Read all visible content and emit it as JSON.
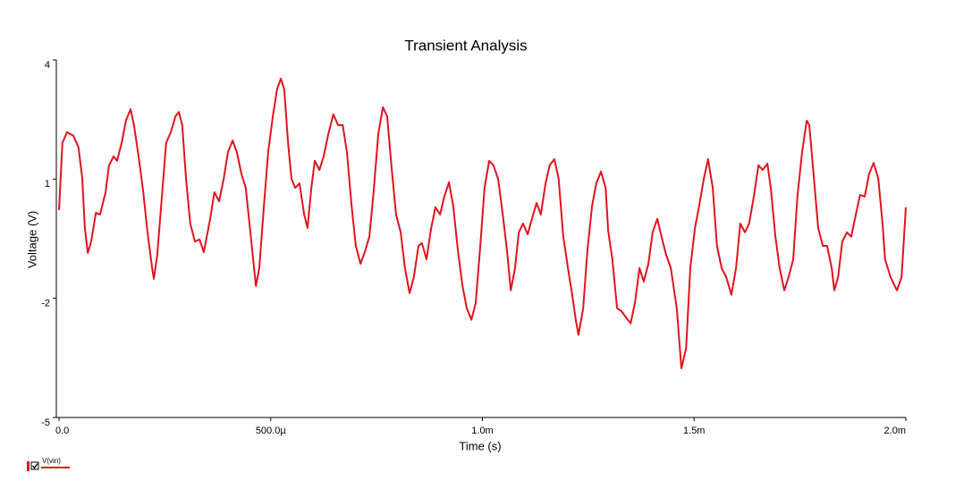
{
  "chart_data": {
    "type": "line",
    "title": "Transient Analysis",
    "x_label": "Time (s)",
    "y_label": "Voltage (V)",
    "x": [
      0,
      8e-06,
      1.9e-05,
      3.4e-05,
      4.6e-05,
      5.5e-05,
      6.1e-05,
      6.8e-05,
      7.6e-05,
      8.7e-05,
      9.7e-05,
      0.00011,
      0.000118,
      0.000129,
      0.000137,
      0.000148,
      0.000158,
      0.000169,
      0.000177,
      0.000188,
      0.000199,
      0.000209,
      0.00022,
      0.000224,
      0.000232,
      0.000243,
      0.000253,
      0.000264,
      0.000275,
      0.000283,
      0.000291,
      0.0003,
      0.00031,
      0.000321,
      0.000332,
      0.000342,
      0.000357,
      0.000367,
      0.000378,
      0.000389,
      0.000399,
      0.00041,
      0.00042,
      0.000431,
      0.000441,
      0.000452,
      0.000465,
      0.000473,
      0.000484,
      0.000494,
      0.000505,
      0.000515,
      0.000524,
      0.000532,
      0.000541,
      0.000549,
      0.000558,
      0.000568,
      0.000579,
      0.000587,
      0.000596,
      0.000604,
      0.000615,
      0.000625,
      0.000636,
      0.000648,
      0.000659,
      0.00067,
      0.00068,
      0.000691,
      0.000701,
      0.000712,
      0.000722,
      0.000733,
      0.000743,
      0.000754,
      0.000765,
      0.000775,
      0.000786,
      0.000796,
      0.000807,
      0.000817,
      0.000828,
      0.000838,
      0.000849,
      0.000857,
      0.000868,
      0.000879,
      0.000889,
      0.0009,
      0.00091,
      0.000921,
      0.000931,
      0.000942,
      0.000953,
      0.000963,
      0.000974,
      0.000984,
      0.000995,
      0.001005,
      0.001016,
      0.001026,
      0.001037,
      0.001048,
      0.001058,
      0.001067,
      0.001077,
      0.001086,
      0.001096,
      0.001107,
      0.001117,
      0.001128,
      0.001138,
      0.001149,
      0.001159,
      0.00117,
      0.00118,
      0.001191,
      0.001202,
      0.001212,
      0.001221,
      0.001227,
      0.001238,
      0.001248,
      0.001259,
      0.001269,
      0.00128,
      0.001291,
      0.001297,
      0.001307,
      0.001318,
      0.001328,
      0.001339,
      0.00135,
      0.00136,
      0.001371,
      0.001381,
      0.001392,
      0.001402,
      0.001413,
      0.001423,
      0.001434,
      0.001445,
      0.001459,
      0.00147,
      0.001481,
      0.001491,
      0.001502,
      0.001512,
      0.001523,
      0.001533,
      0.001544,
      0.001554,
      0.001565,
      0.001576,
      0.001588,
      0.001599,
      0.001609,
      0.00162,
      0.00163,
      0.001641,
      0.001652,
      0.001662,
      0.001673,
      0.001681,
      0.001692,
      0.001702,
      0.001713,
      0.001723,
      0.001734,
      0.001744,
      0.001755,
      0.001766,
      0.001772,
      0.001783,
      0.001793,
      0.001804,
      0.001814,
      0.001825,
      0.001831,
      0.00184,
      0.00185,
      0.001861,
      0.001871,
      0.001882,
      0.001892,
      0.001903,
      0.001913,
      0.001924,
      0.001935,
      0.001945,
      0.001951,
      0.001964,
      0.001979,
      0.00199,
      0.002
    ],
    "series": [
      {
        "name": "V(vin)",
        "color": "#e0141e",
        "values": [
          0.22,
          1.91,
          2.18,
          2.09,
          1.8,
          1.01,
          -0.23,
          -0.86,
          -0.57,
          0.15,
          0.11,
          0.67,
          1.34,
          1.57,
          1.46,
          1.91,
          2.47,
          2.76,
          2.36,
          1.57,
          0.67,
          -0.34,
          -1.24,
          -1.51,
          -0.91,
          0.56,
          1.91,
          2.18,
          2.58,
          2.69,
          2.36,
          1.01,
          -0.12,
          -0.57,
          -0.52,
          -0.84,
          0,
          0.67,
          0.44,
          1.01,
          1.68,
          1.97,
          1.68,
          1.12,
          0.78,
          -0.34,
          -1.69,
          -1.24,
          0.33,
          1.68,
          2.58,
          3.26,
          3.53,
          3.26,
          1.91,
          1.01,
          0.78,
          0.89,
          0.11,
          -0.23,
          0.78,
          1.46,
          1.23,
          1.57,
          2.13,
          2.63,
          2.36,
          2.36,
          1.68,
          0.33,
          -0.68,
          -1.13,
          -0.84,
          -0.45,
          0.67,
          2.13,
          2.81,
          2.58,
          1.23,
          0.11,
          -0.34,
          -1.24,
          -1.87,
          -1.47,
          -0.68,
          -0.61,
          -1.02,
          -0.23,
          0.29,
          0.11,
          0.56,
          0.92,
          0.33,
          -0.79,
          -1.69,
          -2.25,
          -2.54,
          -2.13,
          -0.68,
          0.78,
          1.46,
          1.35,
          1.01,
          0.11,
          -0.79,
          -1.8,
          -1.24,
          -0.34,
          -0.12,
          -0.39,
          0,
          0.4,
          0.11,
          0.89,
          1.35,
          1.5,
          1.01,
          -0.45,
          -1.24,
          -1.91,
          -2.58,
          -2.92,
          -2.25,
          -0.79,
          0.33,
          0.89,
          1.19,
          0.78,
          -0.3,
          -1.02,
          -2.25,
          -2.32,
          -2.48,
          -2.63,
          -2.13,
          -1.24,
          -1.58,
          -1.13,
          -0.34,
          0,
          -0.45,
          -0.91,
          -1.24,
          -2.25,
          -3.76,
          -3.27,
          -1.24,
          -0.23,
          0.33,
          1.01,
          1.5,
          0.78,
          -0.68,
          -1.24,
          -1.47,
          -1.91,
          -1.24,
          -0.12,
          -0.34,
          -0.12,
          0.56,
          1.35,
          1.23,
          1.39,
          0.78,
          -0.45,
          -1.24,
          -1.8,
          -1.47,
          -1.02,
          0.56,
          1.68,
          2.47,
          2.36,
          1.01,
          -0.23,
          -0.68,
          -0.68,
          -1.24,
          -1.8,
          -1.47,
          -0.57,
          -0.34,
          -0.45,
          0.11,
          0.6,
          0.56,
          1.12,
          1.41,
          1.01,
          -0.12,
          -1.02,
          -1.47,
          -1.8,
          -1.47,
          0.29
        ]
      }
    ],
    "xlim": [
      0,
      0.002
    ],
    "ylim": [
      -5,
      4
    ],
    "xticks": [
      {
        "value": 0,
        "label": "0.0"
      },
      {
        "value": 0.0005,
        "label": "500.0µ"
      },
      {
        "value": 0.001,
        "label": "1.0m"
      },
      {
        "value": 0.0015,
        "label": "1.5m"
      },
      {
        "value": 0.002,
        "label": "2.0m"
      }
    ],
    "yticks": [
      4,
      1,
      -2,
      -5
    ],
    "grid": false
  }
}
